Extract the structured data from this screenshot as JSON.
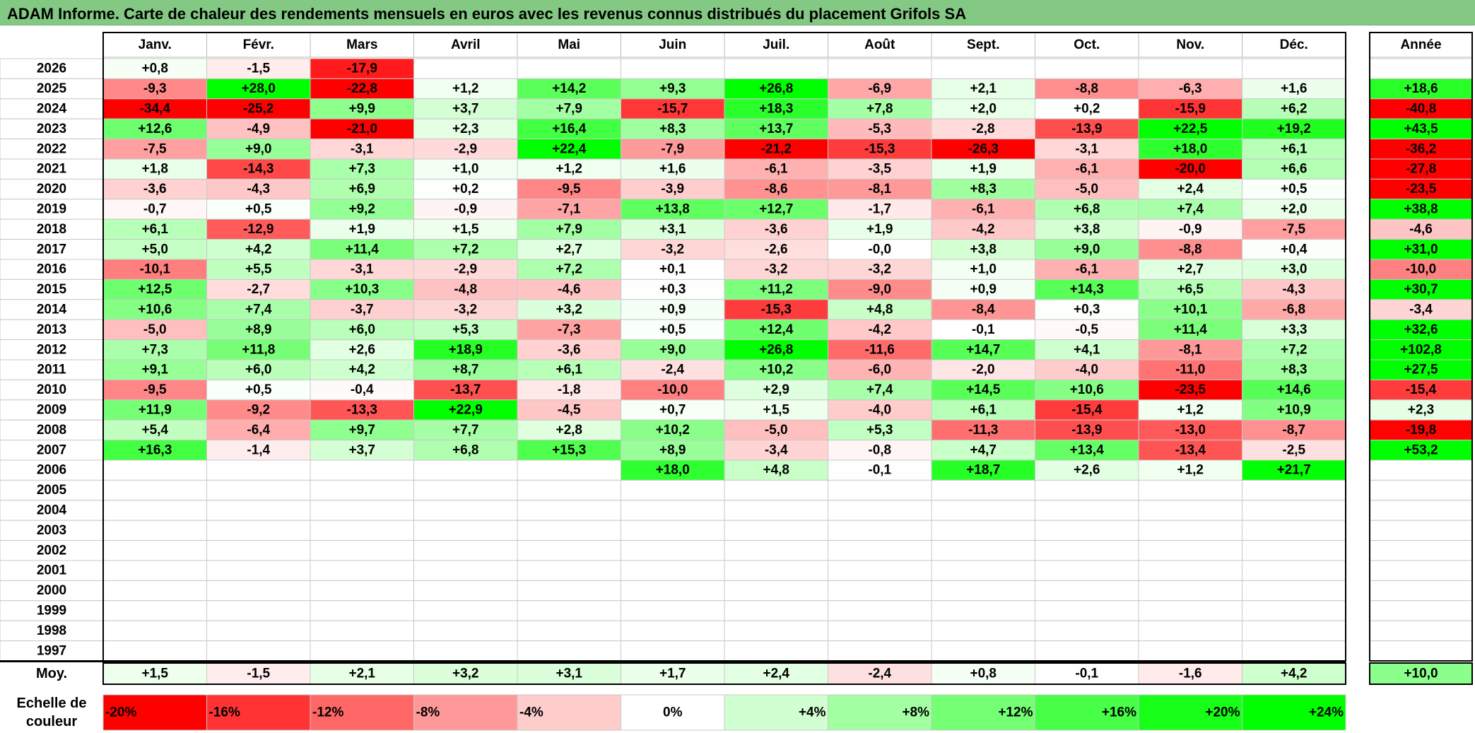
{
  "title": "ADAM Informe. Carte de chaleur des rendements mensuels en euros avec les revenus connus distribués du placement Grifols SA",
  "months": [
    "Janv.",
    "Févr.",
    "Mars",
    "Avril",
    "Mai",
    "Juin",
    "Juil.",
    "Août",
    "Sept.",
    "Oct.",
    "Nov.",
    "Déc."
  ],
  "year_header": "Année",
  "avg_label": "Moy.",
  "scale_label_line1": "Echelle de",
  "scale_label_line2": "couleur",
  "colors": {
    "neg": "#ff0000",
    "pos": "#00ff00",
    "zero": "#ffffff",
    "title_bg": "#83c883"
  },
  "chart_data": {
    "type": "heatmap",
    "title": "ADAM Informe. Carte de chaleur des rendements mensuels en euros avec les revenus connus distribués du placement Grifols SA",
    "units": "%",
    "rows": [
      {
        "year": "2026",
        "months": [
          "+0,8",
          "-1,5",
          "-17,9",
          "",
          "",
          "",
          "",
          "",
          "",
          "",
          "",
          ""
        ],
        "year_value": ""
      },
      {
        "year": "2025",
        "months": [
          "-9,3",
          "+28,0",
          "-22,8",
          "+1,2",
          "+14,2",
          "+9,3",
          "+26,8",
          "-6,9",
          "+2,1",
          "-8,8",
          "-6,3",
          "+1,6"
        ],
        "year_value": "+18,6"
      },
      {
        "year": "2024",
        "months": [
          "-34,4",
          "-25,2",
          "+9,9",
          "+3,7",
          "+7,9",
          "-15,7",
          "+18,3",
          "+7,8",
          "+2,0",
          "+0,2",
          "-15,9",
          "+6,2"
        ],
        "year_value": "-40,8"
      },
      {
        "year": "2023",
        "months": [
          "+12,6",
          "-4,9",
          "-21,0",
          "+2,3",
          "+16,4",
          "+8,3",
          "+13,7",
          "-5,3",
          "-2,8",
          "-13,9",
          "+22,5",
          "+19,2"
        ],
        "year_value": "+43,5"
      },
      {
        "year": "2022",
        "months": [
          "-7,5",
          "+9,0",
          "-3,1",
          "-2,9",
          "+22,4",
          "-7,9",
          "-21,2",
          "-15,3",
          "-26,3",
          "-3,1",
          "+18,0",
          "+6,1"
        ],
        "year_value": "-36,2"
      },
      {
        "year": "2021",
        "months": [
          "+1,8",
          "-14,3",
          "+7,3",
          "+1,0",
          "+1,2",
          "+1,6",
          "-6,1",
          "-3,5",
          "+1,9",
          "-6,1",
          "-20,0",
          "+6,6"
        ],
        "year_value": "-27,8"
      },
      {
        "year": "2020",
        "months": [
          "-3,6",
          "-4,3",
          "+6,9",
          "+0,2",
          "-9,5",
          "-3,9",
          "-8,6",
          "-8,1",
          "+8,3",
          "-5,0",
          "+2,4",
          "+0,5"
        ],
        "year_value": "-23,5"
      },
      {
        "year": "2019",
        "months": [
          "-0,7",
          "+0,5",
          "+9,2",
          "-0,9",
          "-7,1",
          "+13,8",
          "+12,7",
          "-1,7",
          "-6,1",
          "+6,8",
          "+7,4",
          "+2,0"
        ],
        "year_value": "+38,8"
      },
      {
        "year": "2018",
        "months": [
          "+6,1",
          "-12,9",
          "+1,9",
          "+1,5",
          "+7,9",
          "+3,1",
          "-3,6",
          "+1,9",
          "-4,2",
          "+3,8",
          "-0,9",
          "-7,5"
        ],
        "year_value": "-4,6"
      },
      {
        "year": "2017",
        "months": [
          "+5,0",
          "+4,2",
          "+11,4",
          "+7,2",
          "+2,7",
          "-3,2",
          "-2,6",
          "-0,0",
          "+3,8",
          "+9,0",
          "-8,8",
          "+0,4"
        ],
        "year_value": "+31,0"
      },
      {
        "year": "2016",
        "months": [
          "-10,1",
          "+5,5",
          "-3,1",
          "-2,9",
          "+7,2",
          "+0,1",
          "-3,2",
          "-3,2",
          "+1,0",
          "-6,1",
          "+2,7",
          "+3,0"
        ],
        "year_value": "-10,0"
      },
      {
        "year": "2015",
        "months": [
          "+12,5",
          "-2,7",
          "+10,3",
          "-4,8",
          "-4,6",
          "+0,3",
          "+11,2",
          "-9,0",
          "+0,9",
          "+14,3",
          "+6,5",
          "-4,3"
        ],
        "year_value": "+30,7"
      },
      {
        "year": "2014",
        "months": [
          "+10,6",
          "+7,4",
          "-3,7",
          "-3,2",
          "+3,2",
          "+0,9",
          "-15,3",
          "+4,8",
          "-8,4",
          "+0,3",
          "+10,1",
          "-6,8"
        ],
        "year_value": "-3,4"
      },
      {
        "year": "2013",
        "months": [
          "-5,0",
          "+8,9",
          "+6,0",
          "+5,3",
          "-7,3",
          "+0,5",
          "+12,4",
          "-4,2",
          "-0,1",
          "-0,5",
          "+11,4",
          "+3,3"
        ],
        "year_value": "+32,6"
      },
      {
        "year": "2012",
        "months": [
          "+7,3",
          "+11,8",
          "+2,6",
          "+18,9",
          "-3,6",
          "+9,0",
          "+26,8",
          "-11,6",
          "+14,7",
          "+4,1",
          "-8,1",
          "+7,2"
        ],
        "year_value": "+102,8"
      },
      {
        "year": "2011",
        "months": [
          "+9,1",
          "+6,0",
          "+4,2",
          "+8,7",
          "+6,1",
          "-2,4",
          "+10,2",
          "-6,0",
          "-2,0",
          "-4,0",
          "-11,0",
          "+8,3"
        ],
        "year_value": "+27,5"
      },
      {
        "year": "2010",
        "months": [
          "-9,5",
          "+0,5",
          "-0,4",
          "-13,7",
          "-1,8",
          "-10,0",
          "+2,9",
          "+7,4",
          "+14,5",
          "+10,6",
          "-23,5",
          "+14,6"
        ],
        "year_value": "-15,4"
      },
      {
        "year": "2009",
        "months": [
          "+11,9",
          "-9,2",
          "-13,3",
          "+22,9",
          "-4,5",
          "+0,7",
          "+1,5",
          "-4,0",
          "+6,1",
          "-15,4",
          "+1,2",
          "+10,9"
        ],
        "year_value": "+2,3"
      },
      {
        "year": "2008",
        "months": [
          "+5,4",
          "-6,4",
          "+9,7",
          "+7,7",
          "+2,8",
          "+10,2",
          "-5,0",
          "+5,3",
          "-11,3",
          "-13,9",
          "-13,0",
          "-8,7"
        ],
        "year_value": "-19,8"
      },
      {
        "year": "2007",
        "months": [
          "+16,3",
          "-1,4",
          "+3,7",
          "+6,8",
          "+15,3",
          "+8,9",
          "-3,4",
          "-0,8",
          "+4,7",
          "+13,4",
          "-13,4",
          "-2,5"
        ],
        "year_value": "+53,2"
      },
      {
        "year": "2006",
        "months": [
          "",
          "",
          "",
          "",
          "",
          "+18,0",
          "+4,8",
          "-0,1",
          "+18,7",
          "+2,6",
          "+1,2",
          "+21,7"
        ],
        "year_value": ""
      },
      {
        "year": "2005",
        "months": [
          "",
          "",
          "",
          "",
          "",
          "",
          "",
          "",
          "",
          "",
          "",
          ""
        ],
        "year_value": ""
      },
      {
        "year": "2004",
        "months": [
          "",
          "",
          "",
          "",
          "",
          "",
          "",
          "",
          "",
          "",
          "",
          ""
        ],
        "year_value": ""
      },
      {
        "year": "2003",
        "months": [
          "",
          "",
          "",
          "",
          "",
          "",
          "",
          "",
          "",
          "",
          "",
          ""
        ],
        "year_value": ""
      },
      {
        "year": "2002",
        "months": [
          "",
          "",
          "",
          "",
          "",
          "",
          "",
          "",
          "",
          "",
          "",
          ""
        ],
        "year_value": ""
      },
      {
        "year": "2001",
        "months": [
          "",
          "",
          "",
          "",
          "",
          "",
          "",
          "",
          "",
          "",
          "",
          ""
        ],
        "year_value": ""
      },
      {
        "year": "2000",
        "months": [
          "",
          "",
          "",
          "",
          "",
          "",
          "",
          "",
          "",
          "",
          "",
          ""
        ],
        "year_value": ""
      },
      {
        "year": "1999",
        "months": [
          "",
          "",
          "",
          "",
          "",
          "",
          "",
          "",
          "",
          "",
          "",
          ""
        ],
        "year_value": ""
      },
      {
        "year": "1998",
        "months": [
          "",
          "",
          "",
          "",
          "",
          "",
          "",
          "",
          "",
          "",
          "",
          ""
        ],
        "year_value": ""
      },
      {
        "year": "1997",
        "months": [
          "",
          "",
          "",
          "",
          "",
          "",
          "",
          "",
          "",
          "",
          "",
          ""
        ],
        "year_value": ""
      }
    ],
    "averages": [
      "+1,5",
      "-1,5",
      "+2,1",
      "+3,2",
      "+3,1",
      "+1,7",
      "+2,4",
      "-2,4",
      "+0,8",
      "-0,1",
      "-1,6",
      "+4,2"
    ],
    "average_year": "+10,0",
    "scale": [
      {
        "label": "-20%",
        "value": -20
      },
      {
        "label": "-16%",
        "value": -16
      },
      {
        "label": "-12%",
        "value": -12
      },
      {
        "label": "-8%",
        "value": -8
      },
      {
        "label": "-4%",
        "value": -4
      },
      {
        "label": "0%",
        "value": 0
      },
      {
        "label": "+4%",
        "value": 4
      },
      {
        "label": "+8%",
        "value": 8
      },
      {
        "label": "+12%",
        "value": 12
      },
      {
        "label": "+16%",
        "value": 16
      },
      {
        "label": "+20%",
        "value": 20
      },
      {
        "label": "+24%",
        "value": 24
      }
    ]
  }
}
